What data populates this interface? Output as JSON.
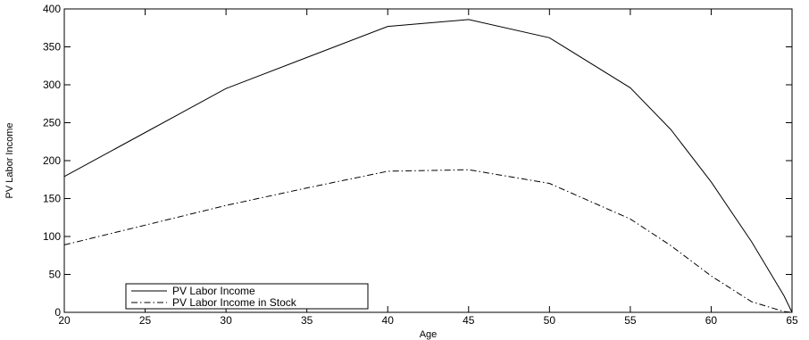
{
  "chart_data": {
    "type": "line",
    "title": "",
    "xlabel": "Age",
    "ylabel": "PV Labor Income",
    "xlim": [
      20,
      65
    ],
    "ylim": [
      0,
      400
    ],
    "xticks": [
      20,
      25,
      30,
      35,
      40,
      45,
      50,
      55,
      60,
      65
    ],
    "yticks": [
      0,
      50,
      100,
      150,
      200,
      250,
      300,
      350,
      400
    ],
    "grid": false,
    "legend_position": "bottom-left",
    "series": [
      {
        "name": "PV Labor Income",
        "style": "solid",
        "color": "#000000",
        "x": [
          20,
          25,
          30,
          35,
          40,
          45,
          50,
          55,
          57.5,
          60,
          62.5,
          64.5,
          65
        ],
        "y": [
          179,
          237,
          295,
          336,
          377,
          386,
          362,
          296,
          241,
          172,
          93,
          22,
          0
        ]
      },
      {
        "name": "PV Labor Income in Stock",
        "style": "dashdot",
        "color": "#000000",
        "x": [
          20,
          25,
          30,
          35,
          40,
          45,
          50,
          55,
          57.5,
          60,
          62.5,
          64.5,
          65
        ],
        "y": [
          89,
          115,
          141,
          164,
          186,
          188,
          170,
          123,
          88,
          48,
          14,
          1,
          0
        ]
      }
    ]
  }
}
